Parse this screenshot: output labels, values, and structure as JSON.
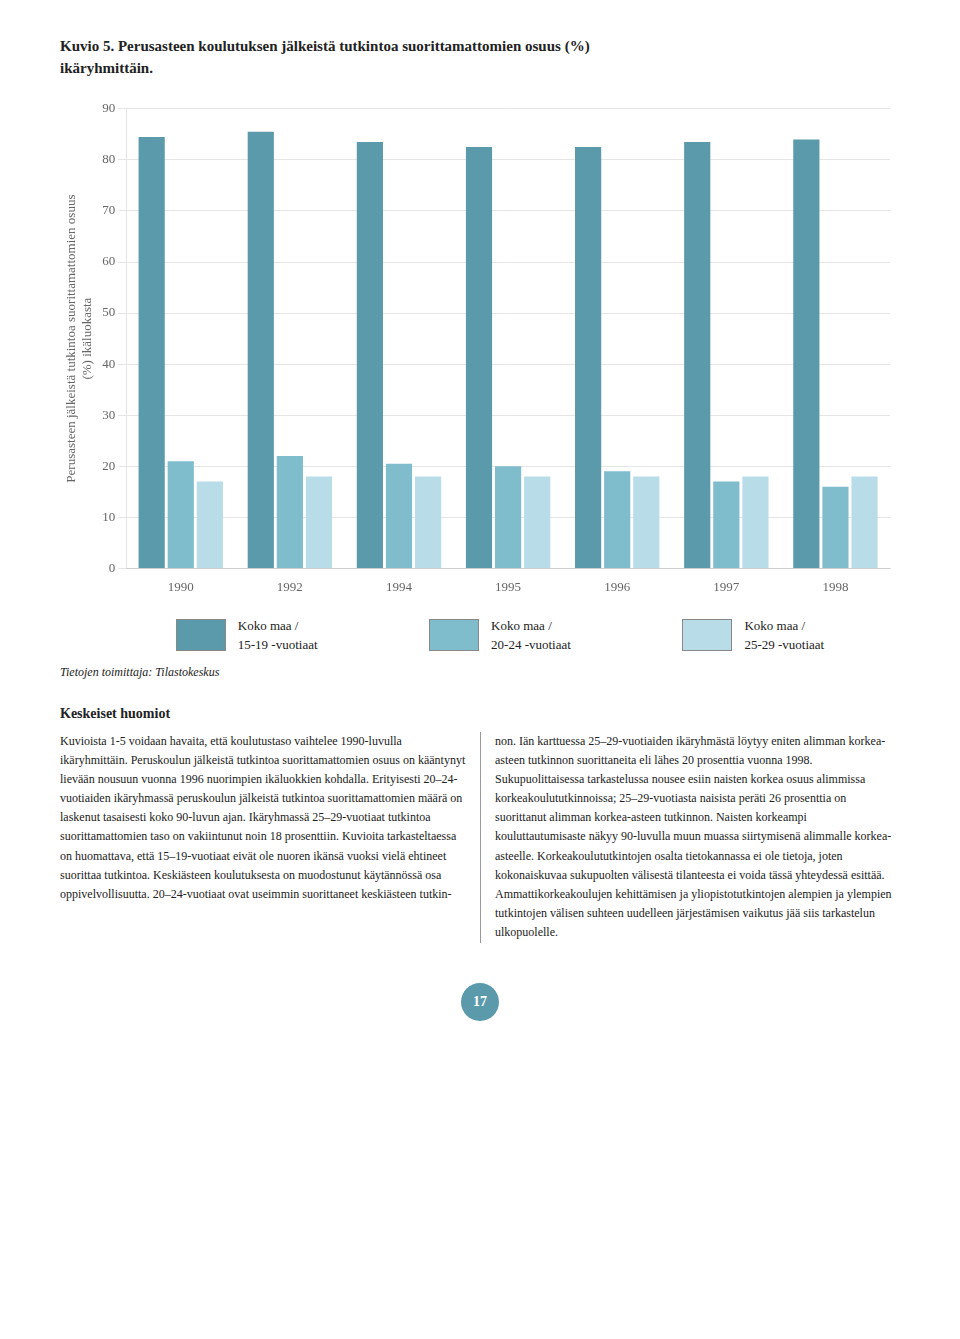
{
  "chart_data": {
    "type": "bar",
    "title": "Kuvio 5. Perusasteen koulutuksen jälkeistä tutkintoa suorittamattomien osuus (%)\nikäryhmittäin.",
    "categories": [
      "1990",
      "1992",
      "1994",
      "1995",
      "1996",
      "1997",
      "1998"
    ],
    "series": [
      {
        "name": "Koko maa /\n15-19 -vuotiaat",
        "color": "#5a9aaa",
        "values": [
          84.5,
          85.5,
          83.5,
          82.5,
          82.5,
          83.5,
          84.0
        ]
      },
      {
        "name": "Koko maa /\n20-24 -vuotiaat",
        "color": "#7fbdcc",
        "values": [
          21.0,
          22.0,
          20.5,
          20.0,
          19.0,
          17.0,
          16.0
        ]
      },
      {
        "name": "Koko maa /\n25-29 -vuotiaat",
        "color": "#b8dde8",
        "values": [
          17.0,
          18.0,
          18.0,
          18.0,
          18.0,
          18.0,
          18.0
        ]
      }
    ],
    "ylabel": "Perusasteen jälkeistä tutkintoa suorittamattomien osuus\n(%) ikäluokasta",
    "ylim": [
      0,
      90
    ],
    "yticks": [
      0,
      10,
      20,
      30,
      40,
      50,
      60,
      70,
      80,
      90
    ],
    "grid": true,
    "legend": "bottom"
  },
  "source_text": "Tietojen toimittaja: Tilastokeskus",
  "section_title": "Keskeiset huomiot",
  "left_text": "Kuvioista 1-5 voidaan havaita, että koulutustaso vaihtelee 1990-luvulla ikäryhmittäin. Peruskoulun jälkeistä tutkintoa suorittamattomien osuus on kääntynyt lievään nousuun vuonna 1996 nuorimpien ikäluokkien kohdalla. Erityisesti 20–24-vuotiaiden ikäryhmassä peruskoulun jälkeistä tutkintoa suorittamattomien määrä on laskenut tasaisesti koko 90-luvun ajan. Ikäryhmassä 25–29-vuotiaat tutkintoa suorittamattomien taso on vakiintunut noin 18 prosenttiin. Kuvioita tarkasteltaessa on huomattava, että 15–19-vuotiaat eivät ole nuoren ikänsä vuoksi vielä ehtineet suorittaa tutkintoa. Keskiästeen koulutuksesta on muodostunut käytännössä osa oppivelvollisuutta. 20–24-vuotiaat ovat useimmin suorittaneet keskiästeen tutkin-",
  "right_text": "non. Iän karttuessa 25–29-vuotiaiden ikäryhmästä löytyy eniten alimman korkea-asteen tutkinnon suorittaneita eli lähes 20 prosenttia vuonna 1998. Sukupuolittaisessa tarkastelussa nousee esiin naisten korkea osuus alimmissa korkeakoulututkinnoissa; 25–29-vuotiasta naisista peräti 26 prosenttia on suorittanut alimman korkea-asteen tutkinnon. Naisten korkeampi kouluttautumisaste näkyy 90-luvulla muun muassa siirtymisenä alimmalle korkea-asteelle. Korkeakoulututkintojen osalta tietokannassa ei ole tietoja, joten kokonaiskuvaa sukupuolten välisestä tilanteesta ei voida tässä yhteydessä esittää. Ammattikorkeakoulujen kehittämisen ja yliopistotutkintojen alempien ja ylempien tutkintojen välisen suhteen uudelleen järjestämisen vaikutus jää siis tarkastelun ulkopuolelle.",
  "page_number": "17"
}
